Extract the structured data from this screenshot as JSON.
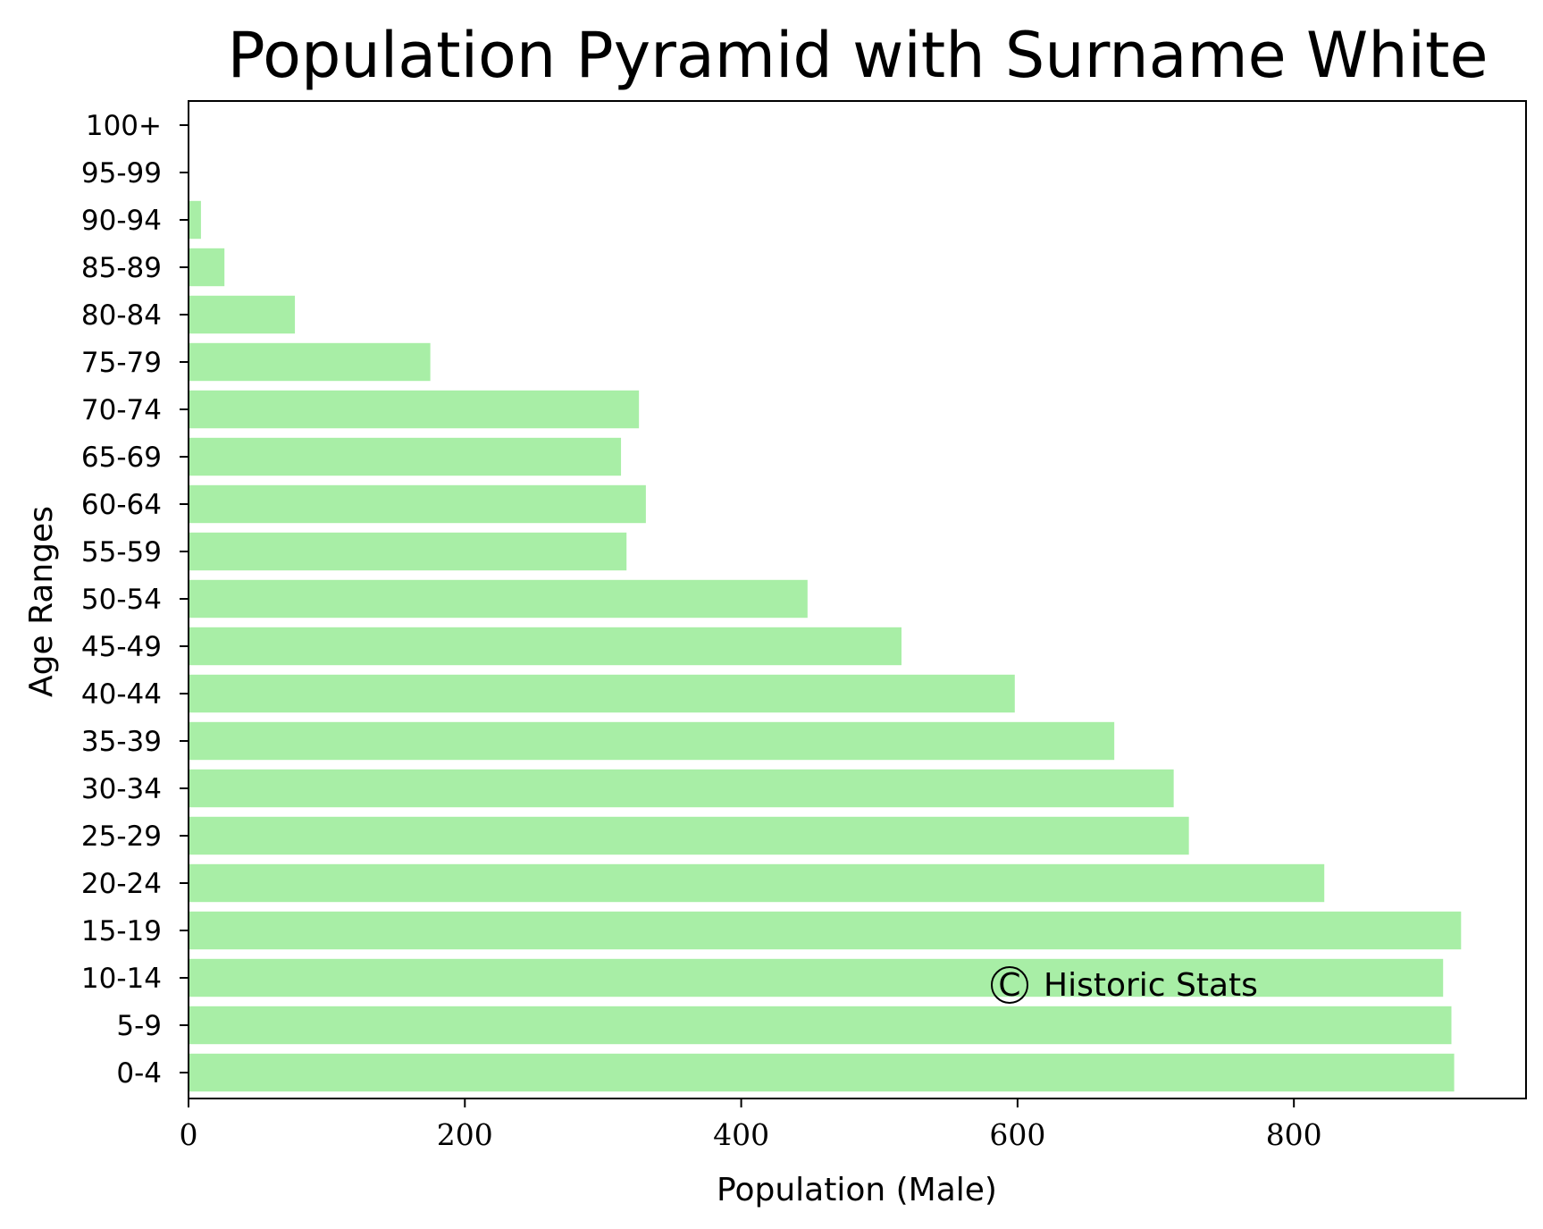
{
  "chart_data": {
    "type": "bar",
    "orientation": "horizontal",
    "title": "Population Pyramid with Surname White",
    "xlabel": "Population (Male)",
    "ylabel": "Age Ranges",
    "categories": [
      "0-4",
      "5-9",
      "10-14",
      "15-19",
      "20-24",
      "25-29",
      "30-34",
      "35-39",
      "40-44",
      "45-49",
      "50-54",
      "55-59",
      "60-64",
      "65-69",
      "70-74",
      "75-79",
      "80-84",
      "85-89",
      "90-94",
      "95-99",
      "100+"
    ],
    "values": [
      916,
      914,
      908,
      921,
      822,
      724,
      713,
      670,
      598,
      516,
      448,
      317,
      331,
      313,
      326,
      175,
      77,
      26,
      9,
      0,
      0
    ],
    "xlim": [
      0,
      968
    ],
    "xticks": [
      "0",
      "200",
      "400",
      "600",
      "800"
    ],
    "xtick_values": [
      0,
      200,
      400,
      600,
      800
    ],
    "bar_color": "#a8eea6",
    "grid": false
  },
  "watermark": {
    "symbol": "C",
    "text": "Historic Stats"
  }
}
